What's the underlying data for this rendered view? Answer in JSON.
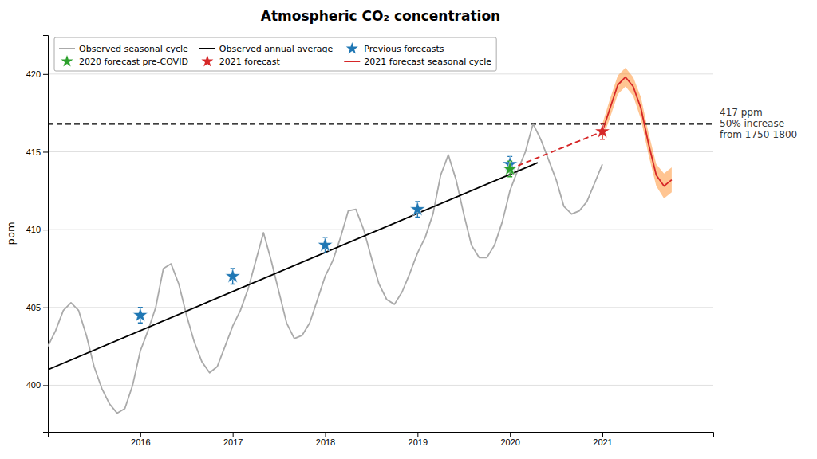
{
  "chart_data": {
    "type": "line",
    "title": "Atmospheric CO₂ concentration",
    "y_label": "ppm",
    "xlim": [
      2015.0,
      2022.2
    ],
    "ylim": [
      397.0,
      422.5
    ],
    "xticks": [
      2016,
      2017,
      2018,
      2019,
      2020,
      2021
    ],
    "yticks": [
      400,
      405,
      410,
      415,
      420
    ],
    "grid": true,
    "legend": "upper left",
    "annotations": [
      {
        "text": "417 ppm\n50% increase\nfrom 1750-1800",
        "y": 416.8,
        "line_style": "dashed",
        "color": "#000000"
      }
    ],
    "series": [
      {
        "name": "Observed seasonal cycle",
        "type": "line",
        "color": "#aaaaaa",
        "x": [
          2015.0,
          2015.083,
          2015.167,
          2015.25,
          2015.333,
          2015.417,
          2015.5,
          2015.583,
          2015.667,
          2015.75,
          2015.833,
          2015.917,
          2016.0,
          2016.083,
          2016.167,
          2016.25,
          2016.333,
          2016.417,
          2016.5,
          2016.583,
          2016.667,
          2016.75,
          2016.833,
          2016.917,
          2017.0,
          2017.083,
          2017.167,
          2017.25,
          2017.333,
          2017.417,
          2017.5,
          2017.583,
          2017.667,
          2017.75,
          2017.833,
          2017.917,
          2018.0,
          2018.083,
          2018.167,
          2018.25,
          2018.333,
          2018.417,
          2018.5,
          2018.583,
          2018.667,
          2018.75,
          2018.833,
          2018.917,
          2019.0,
          2019.083,
          2019.167,
          2019.25,
          2019.333,
          2019.417,
          2019.5,
          2019.583,
          2019.667,
          2019.75,
          2019.833,
          2019.917,
          2020.0,
          2020.083,
          2020.167,
          2020.25,
          2020.333,
          2020.417,
          2020.5,
          2020.583,
          2020.667,
          2020.75,
          2020.833,
          2020.917,
          2021.0
        ],
        "values": [
          402.5,
          403.5,
          404.8,
          405.3,
          404.8,
          403.2,
          401.2,
          399.8,
          398.8,
          398.2,
          398.5,
          400.0,
          402.2,
          403.5,
          405.0,
          407.5,
          407.8,
          406.5,
          404.5,
          402.8,
          401.5,
          400.8,
          401.2,
          402.5,
          403.8,
          404.8,
          406.2,
          408.0,
          409.8,
          408.0,
          406.0,
          404.0,
          403.0,
          403.2,
          404.0,
          405.5,
          407.0,
          408.0,
          409.5,
          411.2,
          411.3,
          410.0,
          408.2,
          406.5,
          405.5,
          405.2,
          406.0,
          407.2,
          408.5,
          409.5,
          411.0,
          413.5,
          414.8,
          413.2,
          411.0,
          409.0,
          408.2,
          408.2,
          409.0,
          410.5,
          412.5,
          413.8,
          415.0,
          416.8,
          415.8,
          414.5,
          413.2,
          411.5,
          411.0,
          411.2,
          411.8,
          413.0,
          414.2
        ]
      },
      {
        "name": "Observed annual average",
        "type": "line",
        "color": "#000000",
        "x": [
          2015.0,
          2020.3
        ],
        "values": [
          401.0,
          414.3
        ]
      },
      {
        "type": "area",
        "color": "#ff7f0e",
        "x": [
          2021.0,
          2021.083,
          2021.167,
          2021.25,
          2021.333,
          2021.417,
          2021.5,
          2021.583,
          2021.667,
          2021.75
        ],
        "lower": [
          415.8,
          417.2,
          418.7,
          419.2,
          418.6,
          417.1,
          414.8,
          412.8,
          412.0,
          412.4
        ],
        "upper": [
          416.8,
          418.4,
          419.9,
          420.4,
          419.8,
          418.5,
          416.2,
          414.2,
          413.6,
          414.0
        ]
      },
      {
        "type": "line",
        "line_style": "dashed",
        "color": "#d62728",
        "x": [
          2020.0,
          2021.0
        ],
        "values": [
          413.9,
          416.3
        ]
      },
      {
        "name": "Previous forecasts",
        "type": "scatter",
        "marker": "star",
        "color": "#1f77b4",
        "x": [
          2016.0,
          2017.0,
          2018.0,
          2019.0,
          2020.0
        ],
        "values": [
          404.5,
          407.0,
          409.0,
          411.3,
          414.2
        ],
        "errors": [
          0.5,
          0.5,
          0.5,
          0.5,
          0.5
        ]
      },
      {
        "name": "2020 forecast pre-COVID",
        "type": "scatter",
        "marker": "star",
        "color": "#2ca02c",
        "x": [
          2020.0
        ],
        "values": [
          413.9
        ],
        "errors": [
          0.5
        ]
      },
      {
        "name": "2021 forecast",
        "type": "scatter",
        "marker": "star",
        "color": "#d62728",
        "x": [
          2021.0
        ],
        "values": [
          416.3
        ],
        "errors": [
          0.5
        ]
      },
      {
        "name": "2021 forecast seasonal cycle",
        "type": "line",
        "color": "#d62728",
        "x": [
          2021.0,
          2021.083,
          2021.167,
          2021.25,
          2021.333,
          2021.417,
          2021.5,
          2021.583,
          2021.667,
          2021.75
        ],
        "values": [
          416.3,
          417.8,
          419.3,
          419.8,
          419.2,
          417.8,
          415.5,
          413.5,
          412.8,
          413.2
        ]
      }
    ]
  }
}
